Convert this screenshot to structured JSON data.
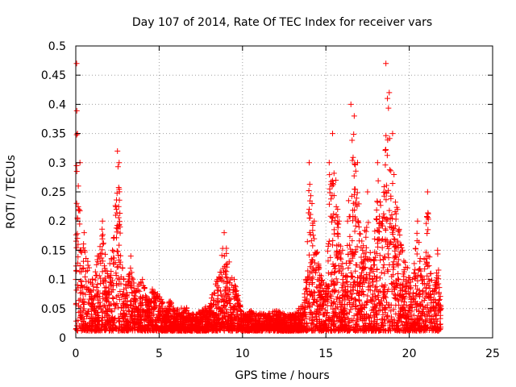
{
  "chart_data": {
    "type": "scatter",
    "title": "Day 107 of 2014, Rate Of TEC Index for receiver vars",
    "xlabel": "GPS time / hours",
    "ylabel": "ROTI / TECUs",
    "xlim": [
      0,
      25
    ],
    "ylim": [
      0,
      0.5
    ],
    "x_ticks": [
      0,
      5,
      10,
      15,
      20,
      25
    ],
    "x_tick_labels": [
      "0",
      "5",
      "10",
      "15",
      "20",
      "25"
    ],
    "y_ticks": [
      0,
      0.05,
      0.1,
      0.15,
      0.2,
      0.25,
      0.3,
      0.35,
      0.4,
      0.45,
      0.5
    ],
    "y_tick_labels": [
      "0",
      "0.05",
      "0.1",
      "0.15",
      "0.2",
      "0.25",
      "0.3",
      "0.35",
      "0.4",
      "0.45",
      "0.5"
    ],
    "grid": true,
    "marker": "+",
    "color": "#ff0000",
    "series": [
      {
        "name": "ROTI",
        "x": [
          0.0,
          0.05,
          0.1,
          0.15,
          0.2,
          0.25,
          0.3,
          0.5,
          0.8,
          1.0,
          1.3,
          1.6,
          1.9,
          2.2,
          2.5,
          2.6,
          2.8,
          3.0,
          3.3,
          3.6,
          4.0,
          4.3,
          4.6,
          5.0,
          5.3,
          5.6,
          6.0,
          6.5,
          7.0,
          7.5,
          8.0,
          8.5,
          8.9,
          9.2,
          9.5,
          10.0,
          10.5,
          11.0,
          11.5,
          12.0,
          12.5,
          13.0,
          13.5,
          13.8,
          14.0,
          14.3,
          14.6,
          15.0,
          15.2,
          15.4,
          15.6,
          15.8,
          16.0,
          16.1,
          16.3,
          16.5,
          16.7,
          16.9,
          17.2,
          17.5,
          17.8,
          18.1,
          18.4,
          18.6,
          18.8,
          19.0,
          19.3,
          19.6,
          19.9,
          20.2,
          20.5,
          20.8,
          21.1,
          21.4,
          21.7,
          21.9
        ],
        "y": [
          0.1,
          0.47,
          0.35,
          0.26,
          0.22,
          0.3,
          0.15,
          0.18,
          0.12,
          0.1,
          0.14,
          0.2,
          0.11,
          0.15,
          0.32,
          0.3,
          0.12,
          0.09,
          0.14,
          0.08,
          0.1,
          0.06,
          0.08,
          0.07,
          0.05,
          0.06,
          0.04,
          0.05,
          0.03,
          0.04,
          0.05,
          0.1,
          0.18,
          0.13,
          0.1,
          0.03,
          0.04,
          0.02,
          0.03,
          0.04,
          0.03,
          0.02,
          0.05,
          0.1,
          0.3,
          0.2,
          0.12,
          0.08,
          0.3,
          0.35,
          0.27,
          0.2,
          0.15,
          0.07,
          0.2,
          0.4,
          0.38,
          0.3,
          0.15,
          0.25,
          0.1,
          0.3,
          0.2,
          0.47,
          0.42,
          0.35,
          0.22,
          0.15,
          0.12,
          0.1,
          0.2,
          0.1,
          0.25,
          0.08,
          0.15,
          0.05
        ]
      }
    ]
  }
}
